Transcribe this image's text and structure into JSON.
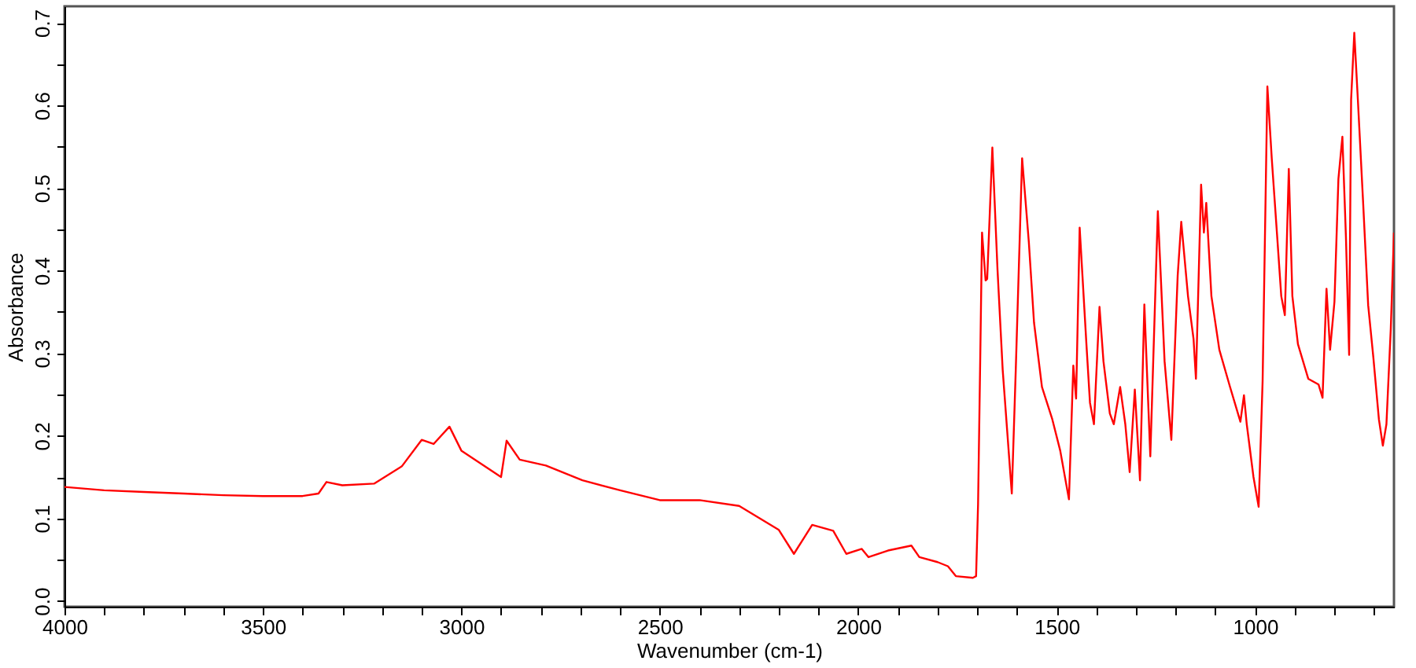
{
  "chart_data": {
    "type": "line",
    "xlabel": "Wavenumber (cm-1)",
    "ylabel": "Absorbance",
    "x": [
      4000,
      3900,
      3800,
      3700,
      3600,
      3500,
      3400,
      3360,
      3340,
      3300,
      3220,
      3150,
      3100,
      3070,
      3030,
      3000,
      2950,
      2900,
      2886,
      2853,
      2787,
      2695,
      2600,
      2500,
      2400,
      2300,
      2200,
      2162,
      2116,
      2063,
      2030,
      1991,
      1974,
      1925,
      1866,
      1846,
      1800,
      1774,
      1754,
      1711,
      1703,
      1698,
      1692,
      1688,
      1679,
      1675,
      1662,
      1649,
      1636,
      1613,
      1603,
      1587,
      1570,
      1557,
      1537,
      1511,
      1491,
      1469,
      1458,
      1451,
      1442,
      1425,
      1416,
      1406,
      1392,
      1382,
      1366,
      1356,
      1340,
      1327,
      1316,
      1303,
      1290,
      1279,
      1264,
      1245,
      1228,
      1211,
      1195,
      1186,
      1169,
      1155,
      1149,
      1136,
      1129,
      1123,
      1110,
      1090,
      1063,
      1037,
      1028,
      1021,
      1004,
      991,
      981,
      969,
      958,
      945,
      934,
      925,
      915,
      906,
      892,
      866,
      840,
      830,
      820,
      811,
      800,
      790,
      780,
      771,
      763,
      758,
      750,
      741,
      728,
      715,
      702,
      688,
      678,
      669,
      658,
      650
    ],
    "series": [
      {
        "color": "#ff0000",
        "values": [
          0.138,
          0.134,
          0.132,
          0.13,
          0.128,
          0.127,
          0.127,
          0.13,
          0.144,
          0.14,
          0.142,
          0.163,
          0.195,
          0.19,
          0.211,
          0.182,
          0.166,
          0.15,
          0.194,
          0.171,
          0.164,
          0.146,
          0.134,
          0.122,
          0.122,
          0.115,
          0.086,
          0.057,
          0.092,
          0.085,
          0.057,
          0.063,
          0.053,
          0.061,
          0.067,
          0.053,
          0.047,
          0.042,
          0.03,
          0.028,
          0.03,
          0.117,
          0.311,
          0.446,
          0.388,
          0.39,
          0.549,
          0.401,
          0.28,
          0.13,
          0.28,
          0.536,
          0.434,
          0.337,
          0.259,
          0.22,
          0.182,
          0.123,
          0.285,
          0.245,
          0.452,
          0.311,
          0.24,
          0.214,
          0.356,
          0.29,
          0.227,
          0.214,
          0.259,
          0.214,
          0.156,
          0.256,
          0.146,
          0.359,
          0.175,
          0.472,
          0.29,
          0.195,
          0.394,
          0.459,
          0.369,
          0.317,
          0.269,
          0.504,
          0.446,
          0.482,
          0.369,
          0.304,
          0.259,
          0.217,
          0.249,
          0.214,
          0.15,
          0.114,
          0.266,
          0.623,
          0.536,
          0.446,
          0.369,
          0.346,
          0.523,
          0.369,
          0.311,
          0.269,
          0.262,
          0.246,
          0.378,
          0.304,
          0.362,
          0.511,
          0.562,
          0.44,
          0.298,
          0.607,
          0.688,
          0.607,
          0.485,
          0.358,
          0.295,
          0.22,
          0.188,
          0.214,
          0.33,
          0.446
        ]
      }
    ],
    "xlim": [
      4000,
      650
    ],
    "xticks": [
      4000,
      {
        "value": 3900,
        "label": null
      },
      {
        "value": 3800,
        "label": null
      },
      {
        "value": 3700,
        "label": null
      },
      {
        "value": 3600,
        "label": null
      },
      3500,
      {
        "value": 3400,
        "label": null
      },
      {
        "value": 3300,
        "label": null
      },
      {
        "value": 3200,
        "label": null
      },
      {
        "value": 3100,
        "label": null
      },
      3000,
      {
        "value": 2900,
        "label": null
      },
      {
        "value": 2800,
        "label": null
      },
      {
        "value": 2700,
        "label": null
      },
      {
        "value": 2600,
        "label": null
      },
      2500,
      {
        "value": 2400,
        "label": null
      },
      {
        "value": 2300,
        "label": null
      },
      {
        "value": 2200,
        "label": null
      },
      {
        "value": 2100,
        "label": null
      },
      2000,
      {
        "value": 1900,
        "label": null
      },
      {
        "value": 1800,
        "label": null
      },
      {
        "value": 1700,
        "label": null
      },
      {
        "value": 1600,
        "label": null
      },
      1500,
      {
        "value": 1400,
        "label": null
      },
      {
        "value": 1300,
        "label": null
      },
      {
        "value": 1200,
        "label": null
      },
      {
        "value": 1100,
        "label": null
      },
      1000,
      {
        "value": 900,
        "label": null
      },
      {
        "value": 800,
        "label": null
      },
      {
        "value": 700,
        "label": null
      }
    ],
    "ylim": [
      -0.007,
      0.72
    ],
    "yticks": [
      {
        "value": 0,
        "label": "0.0"
      },
      {
        "value": 0.05,
        "label": null
      },
      0.1,
      {
        "value": 0.15,
        "label": null
      },
      0.2,
      {
        "value": 0.25,
        "label": null
      },
      0.3,
      {
        "value": 0.35,
        "label": null
      },
      0.4,
      {
        "value": 0.45,
        "label": null
      },
      0.5,
      {
        "value": 0.55,
        "label": null
      },
      0.6,
      {
        "value": 0.65,
        "label": null
      },
      0.7
    ],
    "grid": false,
    "marker": "none",
    "line_style": "solid"
  }
}
